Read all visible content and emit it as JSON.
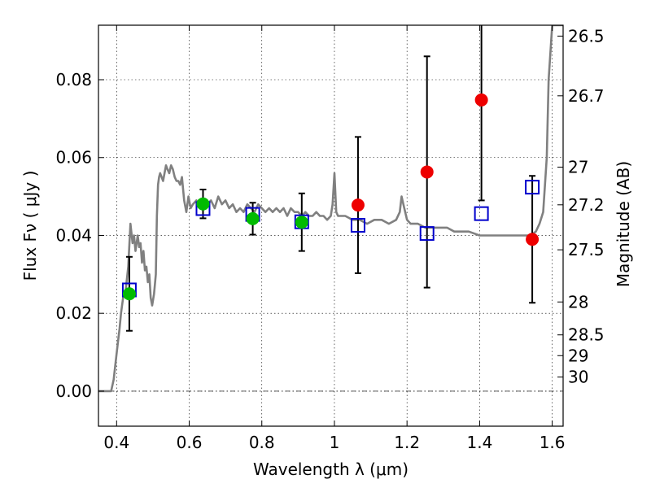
{
  "chart_data": {
    "type": "scatter",
    "title": "",
    "xlabel": "Wavelength  λ (μm)",
    "ylabel": "Flux  Fν  ( μJy )",
    "y2label": "Magnitude (AB)",
    "xlim": [
      0.35,
      1.63
    ],
    "ylim": [
      -0.009,
      0.094
    ],
    "grid": true,
    "x_ticks": [
      0.4,
      0.6,
      0.8,
      1.0,
      1.2,
      1.4,
      1.6
    ],
    "x_tick_labels": [
      "0.4",
      "0.6",
      "0.8",
      "1",
      "1.2",
      "1.4",
      "1.6"
    ],
    "y_ticks": [
      0.0,
      0.02,
      0.04,
      0.06,
      0.08
    ],
    "y_tick_labels": [
      "0.00",
      "0.02",
      "0.04",
      "0.06",
      "0.08"
    ],
    "y2_ticks": [
      26.5,
      26.7,
      27,
      27.2,
      27.5,
      28,
      28.5,
      29,
      30
    ],
    "y2_tick_labels": [
      "26.5",
      "26.7",
      "27",
      "27.2",
      "27.5",
      "28",
      "28.5",
      "29",
      "30"
    ],
    "zero_line": 0.0,
    "series": [
      {
        "marker": "circle",
        "color": "#00bb00",
        "points": [
          {
            "x": 0.435,
            "y": 0.025,
            "yerr": 0.0095
          },
          {
            "x": 0.638,
            "y": 0.0481,
            "yerr": 0.0037
          },
          {
            "x": 0.775,
            "y": 0.0443,
            "yerr": 0.0041
          },
          {
            "x": 0.91,
            "y": 0.0434,
            "yerr": 0.0074
          }
        ]
      },
      {
        "marker": "circle",
        "color": "#ee0000",
        "points": [
          {
            "x": 1.065,
            "y": 0.0478,
            "yerr": 0.0175
          },
          {
            "x": 1.255,
            "y": 0.0563,
            "yerr": 0.0297
          },
          {
            "x": 1.405,
            "y": 0.0748,
            "yerr": 0.0258
          },
          {
            "x": 1.545,
            "y": 0.039,
            "yerr": 0.0163
          }
        ]
      },
      {
        "marker": "open-square",
        "color": "#0000cc",
        "points": [
          {
            "x": 0.435,
            "y": 0.026
          },
          {
            "x": 0.638,
            "y": 0.0469
          },
          {
            "x": 0.775,
            "y": 0.0454
          },
          {
            "x": 0.91,
            "y": 0.0435
          },
          {
            "x": 1.065,
            "y": 0.0426
          },
          {
            "x": 1.255,
            "y": 0.0405
          },
          {
            "x": 1.405,
            "y": 0.0456
          },
          {
            "x": 1.545,
            "y": 0.0524
          }
        ]
      },
      {
        "marker": "line",
        "color": "#808080",
        "x": [
          0.35,
          0.375,
          0.385,
          0.392,
          0.398,
          0.403,
          0.408,
          0.412,
          0.418,
          0.425,
          0.432,
          0.438,
          0.444,
          0.448,
          0.452,
          0.458,
          0.462,
          0.466,
          0.47,
          0.474,
          0.478,
          0.482,
          0.486,
          0.49,
          0.494,
          0.498,
          0.503,
          0.508,
          0.511,
          0.514,
          0.517,
          0.52,
          0.524,
          0.528,
          0.532,
          0.536,
          0.54,
          0.545,
          0.55,
          0.555,
          0.56,
          0.565,
          0.57,
          0.575,
          0.58,
          0.586,
          0.592,
          0.598,
          0.604,
          0.61,
          0.62,
          0.63,
          0.64,
          0.65,
          0.66,
          0.67,
          0.68,
          0.69,
          0.7,
          0.71,
          0.72,
          0.73,
          0.74,
          0.75,
          0.76,
          0.77,
          0.78,
          0.79,
          0.8,
          0.81,
          0.82,
          0.83,
          0.84,
          0.85,
          0.86,
          0.87,
          0.88,
          0.89,
          0.9,
          0.91,
          0.92,
          0.93,
          0.94,
          0.95,
          0.96,
          0.97,
          0.98,
          0.99,
          0.995,
          1.0,
          1.005,
          1.01,
          1.03,
          1.05,
          1.07,
          1.09,
          1.11,
          1.13,
          1.15,
          1.17,
          1.18,
          1.185,
          1.19,
          1.2,
          1.21,
          1.23,
          1.25,
          1.27,
          1.29,
          1.31,
          1.33,
          1.35,
          1.37,
          1.4,
          1.42,
          1.44,
          1.46,
          1.48,
          1.5,
          1.52,
          1.54,
          1.555,
          1.565,
          1.575,
          1.585,
          1.59,
          1.6,
          1.61,
          1.63
        ],
        "y": [
          0.0,
          0.0,
          0.0,
          0.003,
          0.008,
          0.012,
          0.016,
          0.02,
          0.024,
          0.026,
          0.032,
          0.043,
          0.038,
          0.04,
          0.036,
          0.04,
          0.037,
          0.038,
          0.033,
          0.036,
          0.031,
          0.032,
          0.028,
          0.03,
          0.024,
          0.022,
          0.025,
          0.03,
          0.045,
          0.053,
          0.055,
          0.056,
          0.055,
          0.054,
          0.056,
          0.058,
          0.057,
          0.056,
          0.058,
          0.057,
          0.055,
          0.054,
          0.054,
          0.053,
          0.055,
          0.049,
          0.046,
          0.05,
          0.047,
          0.048,
          0.049,
          0.047,
          0.048,
          0.048,
          0.049,
          0.047,
          0.05,
          0.048,
          0.049,
          0.047,
          0.048,
          0.046,
          0.047,
          0.046,
          0.048,
          0.047,
          0.046,
          0.048,
          0.047,
          0.046,
          0.047,
          0.046,
          0.047,
          0.046,
          0.047,
          0.045,
          0.047,
          0.046,
          0.046,
          0.045,
          0.046,
          0.045,
          0.045,
          0.046,
          0.045,
          0.045,
          0.044,
          0.045,
          0.048,
          0.056,
          0.046,
          0.045,
          0.045,
          0.044,
          0.044,
          0.043,
          0.044,
          0.044,
          0.043,
          0.044,
          0.046,
          0.05,
          0.048,
          0.044,
          0.043,
          0.043,
          0.042,
          0.042,
          0.042,
          0.042,
          0.041,
          0.041,
          0.041,
          0.04,
          0.04,
          0.04,
          0.04,
          0.04,
          0.04,
          0.04,
          0.04,
          0.041,
          0.043,
          0.046,
          0.06,
          0.08,
          0.094,
          0.094,
          0.094
        ]
      }
    ]
  }
}
